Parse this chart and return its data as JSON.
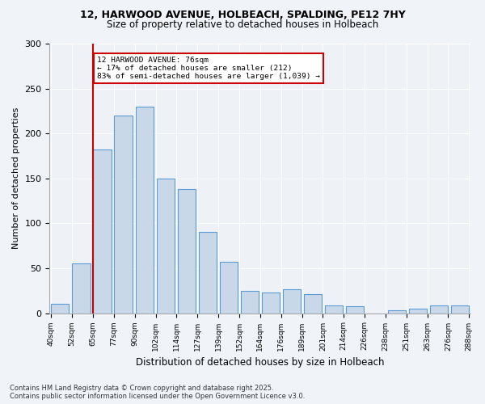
{
  "title1": "12, HARWOOD AVENUE, HOLBEACH, SPALDING, PE12 7HY",
  "title2": "Size of property relative to detached houses in Holbeach",
  "xlabel": "Distribution of detached houses by size in Holbeach",
  "ylabel": "Number of detached properties",
  "bins": [
    "40sqm",
    "52sqm",
    "65sqm",
    "77sqm",
    "90sqm",
    "102sqm",
    "114sqm",
    "127sqm",
    "139sqm",
    "152sqm",
    "164sqm",
    "176sqm",
    "189sqm",
    "201sqm",
    "214sqm",
    "226sqm",
    "238sqm",
    "251sqm",
    "263sqm",
    "276sqm",
    "288sqm"
  ],
  "values": [
    10,
    55,
    182,
    220,
    230,
    150,
    138,
    90,
    57,
    25,
    23,
    27,
    21,
    9,
    8,
    0,
    3,
    5,
    9,
    9
  ],
  "bar_color": "#c8d8e8",
  "bar_edge_color": "#5b9bd5",
  "property_line_color": "#cc0000",
  "annotation_text": "12 HARWOOD AVENUE: 76sqm\n← 17% of detached houses are smaller (212)\n83% of semi-detached houses are larger (1,039) →",
  "annotation_box_color": "#cc0000",
  "annotation_bg": "white",
  "ylim": [
    0,
    300
  ],
  "yticks": [
    0,
    50,
    100,
    150,
    200,
    250,
    300
  ],
  "footer": "Contains HM Land Registry data © Crown copyright and database right 2025.\nContains public sector information licensed under the Open Government Licence v3.0.",
  "bg_color": "#f0f4f8",
  "plot_bg_color": "#eef2f7"
}
